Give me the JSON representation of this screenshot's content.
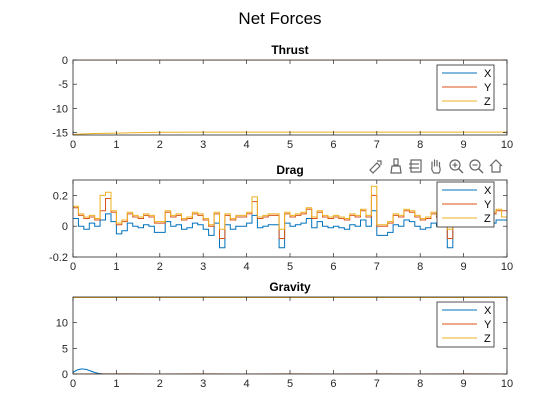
{
  "figure": {
    "title": "Net Forces"
  },
  "toolbar": {
    "icons": [
      "export-icon",
      "brush-icon",
      "data-tips-icon",
      "pan-icon",
      "zoom-in-icon",
      "zoom-out-icon",
      "home-icon"
    ]
  },
  "colors": {
    "X": "#0072bd",
    "Y": "#d95319",
    "Z": "#edb120",
    "axis": "#262626",
    "title": "#000000"
  },
  "chart_data": [
    {
      "type": "line",
      "title": "Thrust",
      "xlabel": "",
      "ylabel": "",
      "xlim": [
        0,
        10
      ],
      "ylim": [
        -15.5,
        0
      ],
      "xticks": [
        0,
        1,
        2,
        3,
        4,
        5,
        6,
        7,
        8,
        9,
        10
      ],
      "yticks": [
        0,
        -5,
        -10,
        -15
      ],
      "grid": false,
      "legend": {
        "position": "top-right",
        "entries": [
          "X",
          "Y",
          "Z"
        ]
      },
      "series": [
        {
          "name": "X",
          "x": [
            0,
            10
          ],
          "y": [
            0,
            0
          ]
        },
        {
          "name": "Y",
          "x": [
            0,
            10
          ],
          "y": [
            0,
            0
          ]
        },
        {
          "name": "Z",
          "x": [
            0,
            0.2,
            0.5,
            1,
            1.5,
            2,
            3,
            4,
            5,
            6,
            7,
            8,
            9,
            10
          ],
          "y": [
            -15.4,
            -15.3,
            -15.2,
            -15.1,
            -15.0,
            -14.95,
            -14.9,
            -14.9,
            -14.9,
            -14.9,
            -14.9,
            -14.9,
            -14.9,
            -14.9
          ]
        }
      ]
    },
    {
      "type": "line",
      "title": "Drag",
      "xlabel": "",
      "ylabel": "",
      "xlim": [
        0,
        10
      ],
      "ylim": [
        -0.2,
        0.3
      ],
      "xticks": [
        0,
        1,
        2,
        3,
        4,
        5,
        6,
        7,
        8,
        9,
        10
      ],
      "yticks": [
        -0.2,
        0,
        0.2
      ],
      "grid": false,
      "legend": {
        "position": "top-right",
        "entries": [
          "X",
          "Y",
          "Z"
        ]
      },
      "step_dt": 0.125,
      "series": [
        {
          "name": "X",
          "y": [
            0.05,
            0.0,
            -0.02,
            0.02,
            0.0,
            0.04,
            0.08,
            0.03,
            -0.05,
            -0.03,
            0.02,
            0.0,
            -0.01,
            0.01,
            0.0,
            -0.04,
            -0.04,
            0.03,
            0.0,
            0.01,
            -0.02,
            -0.01,
            0.02,
            0.01,
            -0.02,
            -0.06,
            0.02,
            -0.14,
            0.01,
            -0.02,
            0.0,
            0.0,
            0.02,
            0.07,
            -0.01,
            0.0,
            0.01,
            0.01,
            -0.14,
            0.02,
            0.0,
            0.01,
            0.02,
            0.05,
            -0.01,
            0.03,
            0.0,
            -0.01,
            0.0,
            -0.01,
            -0.02,
            0.01,
            0.0,
            0.04,
            0.0,
            0.1,
            -0.06,
            -0.06,
            -0.04,
            0.01,
            0.0,
            0.04,
            0.03,
            0.0,
            -0.02,
            -0.01,
            0.02,
            0.0,
            0.04,
            -0.14,
            0.02,
            0.0,
            0.01,
            0.03,
            0.03,
            0.03,
            0.02,
            0.02,
            0.04,
            0.04
          ]
        },
        {
          "name": "Y",
          "y": [
            0.12,
            0.07,
            0.05,
            0.06,
            0.04,
            0.1,
            0.18,
            0.09,
            0.01,
            0.03,
            0.08,
            0.06,
            0.05,
            0.07,
            0.06,
            0.02,
            0.02,
            0.09,
            0.06,
            0.07,
            0.04,
            0.05,
            0.08,
            0.07,
            0.04,
            0.0,
            0.08,
            -0.08,
            0.07,
            0.04,
            0.06,
            0.06,
            0.08,
            0.16,
            0.05,
            0.06,
            0.07,
            0.07,
            -0.08,
            0.08,
            0.06,
            0.07,
            0.08,
            0.11,
            0.05,
            0.09,
            0.06,
            0.05,
            0.06,
            0.05,
            0.04,
            0.07,
            0.06,
            0.1,
            0.06,
            0.2,
            0.0,
            0.0,
            0.02,
            0.07,
            0.06,
            0.1,
            0.09,
            0.06,
            0.04,
            0.05,
            0.08,
            0.06,
            0.1,
            -0.08,
            0.08,
            0.06,
            0.07,
            0.09,
            0.09,
            0.09,
            0.08,
            0.08,
            0.1,
            0.1
          ]
        },
        {
          "name": "Z",
          "y": [
            0.13,
            0.08,
            0.06,
            0.07,
            0.05,
            0.2,
            0.22,
            0.1,
            0.02,
            0.04,
            0.09,
            0.07,
            0.06,
            0.08,
            0.07,
            0.03,
            0.03,
            0.1,
            0.07,
            0.08,
            0.05,
            0.06,
            0.09,
            0.08,
            0.05,
            0.01,
            0.09,
            -0.02,
            0.08,
            0.05,
            0.07,
            0.07,
            0.09,
            0.19,
            0.06,
            0.07,
            0.08,
            0.08,
            -0.02,
            0.09,
            0.07,
            0.08,
            0.09,
            0.12,
            0.06,
            0.1,
            0.07,
            0.06,
            0.07,
            0.06,
            0.05,
            0.08,
            0.07,
            0.11,
            0.07,
            0.26,
            0.01,
            0.01,
            0.03,
            0.08,
            0.07,
            0.11,
            0.1,
            0.07,
            0.05,
            0.06,
            0.09,
            0.07,
            0.21,
            -0.02,
            0.09,
            0.07,
            0.08,
            0.1,
            0.1,
            0.1,
            0.09,
            0.09,
            0.11,
            0.06
          ]
        }
      ]
    },
    {
      "type": "line",
      "title": "Gravity",
      "xlabel": "",
      "ylabel": "",
      "xlim": [
        0,
        10
      ],
      "ylim": [
        0,
        15
      ],
      "xticks": [
        0,
        1,
        2,
        3,
        4,
        5,
        6,
        7,
        8,
        9,
        10
      ],
      "yticks": [
        0,
        5,
        10
      ],
      "grid": false,
      "legend": {
        "position": "top-right",
        "entries": [
          "X",
          "Y",
          "Z"
        ]
      },
      "series": [
        {
          "name": "X",
          "x": [
            0,
            0.1,
            0.2,
            0.3,
            0.4,
            0.5,
            0.6,
            0.7,
            0.8,
            1.0,
            10
          ],
          "y": [
            0.3,
            0.8,
            1.0,
            0.9,
            0.6,
            0.3,
            0.1,
            0.0,
            -0.05,
            0.0,
            0.0
          ]
        },
        {
          "name": "Y",
          "x": [
            0,
            1,
            2,
            3,
            4,
            5,
            6,
            7,
            8,
            9,
            10
          ],
          "y": [
            0,
            0.02,
            0,
            0.02,
            0,
            0.02,
            0,
            0.02,
            0,
            0.02,
            0
          ]
        },
        {
          "name": "Z",
          "x": [
            0,
            10
          ],
          "y": [
            14.9,
            14.9
          ]
        }
      ]
    }
  ]
}
